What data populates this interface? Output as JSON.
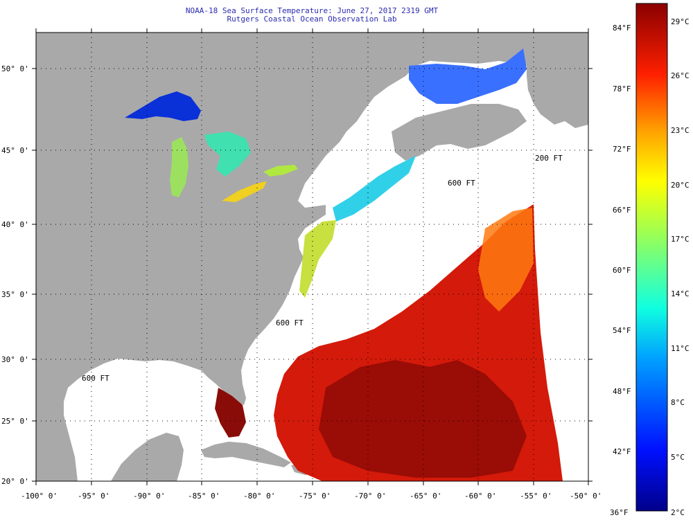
{
  "title": "NOAA-18 Sea Surface Temperature:  June 27, 2017 2319 GMT",
  "subtitle": "Rutgers Coastal Ocean Observation Lab",
  "map": {
    "lon_range": [
      -100,
      -50
    ],
    "lat_range": [
      20,
      52
    ],
    "lat_labels": [
      "20° 0'",
      "25° 0'",
      "30° 0'",
      "35° 0'",
      "40° 0'",
      "45° 0'",
      "50° 0'"
    ],
    "lon_labels": [
      "-100° 0'",
      "-95° 0'",
      "-90° 0'",
      "-85° 0'",
      "-80° 0'",
      "-75° 0'",
      "-70° 0'",
      "-65° 0'",
      "-60° 0'",
      "-55° 0'",
      "-50° 0'"
    ],
    "contour_labels": [
      "200 FT",
      "600 FT",
      "600 FT",
      "600 FT"
    ],
    "colors": {
      "land": "#a9a9a9",
      "no_data": "#ffffff",
      "gulf_stream": "#d41a0a"
    }
  },
  "colorbar": {
    "fahrenheit_labels": [
      "84°F",
      "78°F",
      "72°F",
      "66°F",
      "60°F",
      "54°F",
      "48°F",
      "42°F",
      "36°F"
    ],
    "celsius_labels": [
      "29°C",
      "26°C",
      "23°C",
      "20°C",
      "17°C",
      "14°C",
      "11°C",
      "8°C",
      "5°C",
      "2°C"
    ],
    "range_c": [
      2,
      30
    ]
  }
}
